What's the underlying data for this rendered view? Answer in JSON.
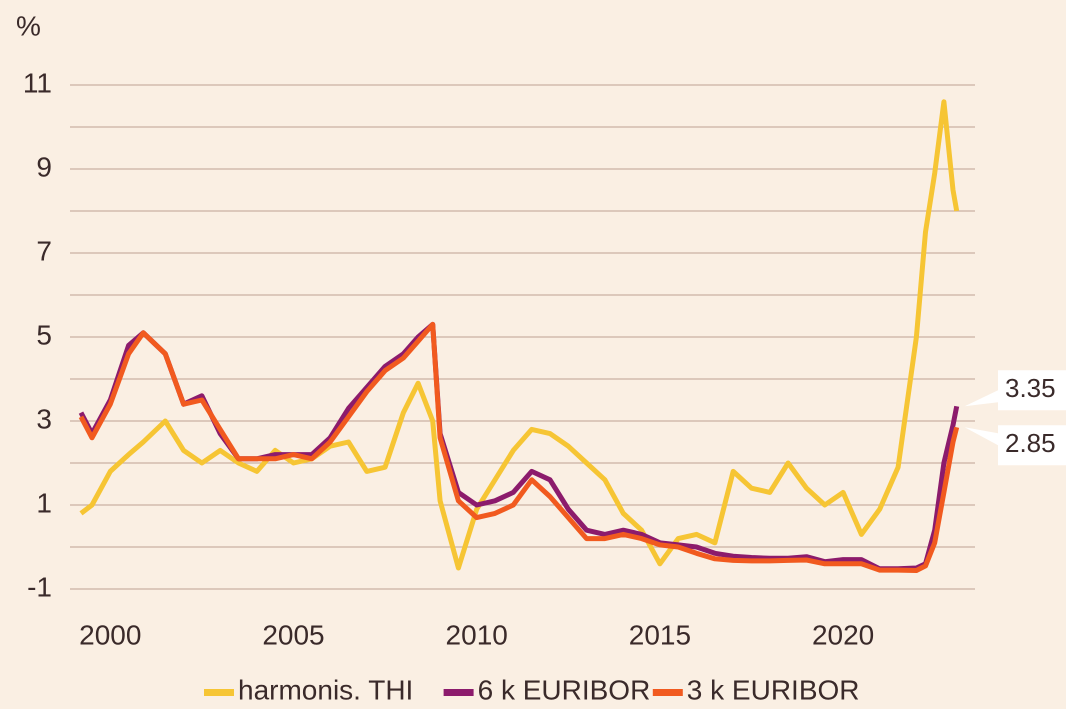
{
  "chart_data": {
    "type": "line",
    "y_unit": "%",
    "x": [
      1999.2,
      1999.5,
      2000.0,
      2000.5,
      2000.9,
      2001.5,
      2002.0,
      2002.5,
      2003.0,
      2003.5,
      2004.0,
      2004.5,
      2005.0,
      2005.5,
      2006.0,
      2006.5,
      2007.0,
      2007.5,
      2008.0,
      2008.4,
      2008.8,
      2009.0,
      2009.5,
      2010.0,
      2010.5,
      2011.0,
      2011.5,
      2012.0,
      2012.5,
      2013.0,
      2013.5,
      2014.0,
      2014.5,
      2015.0,
      2015.5,
      2016.0,
      2016.5,
      2017.0,
      2017.5,
      2018.0,
      2018.5,
      2019.0,
      2019.5,
      2020.0,
      2020.5,
      2021.0,
      2021.5,
      2022.0,
      2022.25,
      2022.5,
      2022.75,
      2023.0,
      2023.1
    ],
    "series": [
      {
        "name": "harmonis. THI",
        "color": "#f6c534",
        "values": [
          0.8,
          1.0,
          1.8,
          2.2,
          2.5,
          3.0,
          2.3,
          2.0,
          2.3,
          2.0,
          1.8,
          2.3,
          2.0,
          2.1,
          2.4,
          2.5,
          1.8,
          1.9,
          3.2,
          3.9,
          3.0,
          1.1,
          -0.5,
          0.9,
          1.6,
          2.3,
          2.8,
          2.7,
          2.4,
          2.0,
          1.6,
          0.8,
          0.4,
          -0.4,
          0.2,
          0.3,
          0.1,
          1.8,
          1.4,
          1.3,
          2.0,
          1.4,
          1.0,
          1.3,
          0.3,
          0.9,
          1.9,
          5.0,
          7.5,
          8.9,
          10.6,
          8.5,
          8.0
        ]
      },
      {
        "name": "6 k EURIBOR",
        "color": "#8c1b6c",
        "label_last": true,
        "values": [
          3.2,
          2.7,
          3.5,
          4.8,
          5.1,
          4.6,
          3.4,
          3.6,
          2.7,
          2.1,
          2.1,
          2.2,
          2.2,
          2.2,
          2.6,
          3.3,
          3.8,
          4.3,
          4.6,
          5.0,
          5.3,
          2.7,
          1.3,
          1.0,
          1.1,
          1.3,
          1.8,
          1.6,
          0.9,
          0.4,
          0.3,
          0.4,
          0.3,
          0.1,
          0.05,
          0.0,
          -0.15,
          -0.22,
          -0.25,
          -0.27,
          -0.27,
          -0.23,
          -0.35,
          -0.3,
          -0.3,
          -0.52,
          -0.52,
          -0.5,
          -0.4,
          0.4,
          2.0,
          2.9,
          3.35
        ]
      },
      {
        "name": "3 k EURIBOR",
        "color": "#f15a1f",
        "label_last": true,
        "values": [
          3.1,
          2.6,
          3.4,
          4.6,
          5.1,
          4.6,
          3.4,
          3.5,
          2.8,
          2.1,
          2.1,
          2.1,
          2.2,
          2.1,
          2.5,
          3.1,
          3.7,
          4.2,
          4.5,
          4.9,
          5.3,
          2.6,
          1.1,
          0.7,
          0.8,
          1.0,
          1.6,
          1.2,
          0.7,
          0.2,
          0.2,
          0.3,
          0.2,
          0.05,
          0.0,
          -0.15,
          -0.28,
          -0.32,
          -0.33,
          -0.33,
          -0.32,
          -0.31,
          -0.4,
          -0.4,
          -0.4,
          -0.55,
          -0.55,
          -0.56,
          -0.45,
          0.1,
          1.3,
          2.5,
          2.85
        ]
      }
    ],
    "xlim": [
      1998.9,
      2023.6
    ],
    "xticks": [
      2000,
      2005,
      2010,
      2015,
      2020
    ],
    "ylim": [
      -1,
      11
    ],
    "yticks": [
      -1,
      1,
      3,
      5,
      7,
      9,
      11
    ],
    "yminorticks": [
      0,
      2,
      4,
      6,
      8,
      10
    ],
    "grid": true,
    "legend": "bottom"
  }
}
